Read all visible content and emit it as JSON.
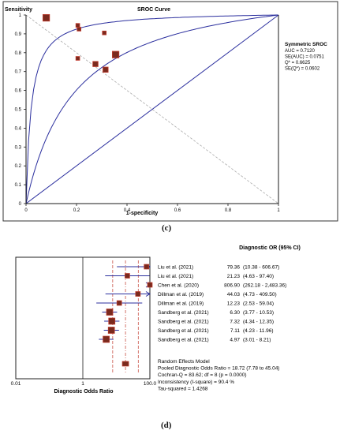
{
  "chart_data": [
    {
      "type": "scatter",
      "panel": "(c)",
      "title": "SROC Curve",
      "ylabel": "Sensitivity",
      "xlabel": "1-specificity",
      "xlim": [
        0,
        1
      ],
      "ylim": [
        0,
        1
      ],
      "x_ticks": [
        "0",
        "0.2",
        "0.4",
        "0.6",
        "0.8",
        "1"
      ],
      "y_ticks": [
        "0",
        "0.1",
        "0.2",
        "0.3",
        "0.4",
        "0.5",
        "0.6",
        "0.7",
        "0.8",
        "0.9",
        "1"
      ],
      "points": [
        {
          "x": 0.08,
          "y": 0.985,
          "w": 3
        },
        {
          "x": 0.205,
          "y": 0.945,
          "w": 1
        },
        {
          "x": 0.21,
          "y": 0.925,
          "w": 1
        },
        {
          "x": 0.31,
          "y": 0.905,
          "w": 1
        },
        {
          "x": 0.205,
          "y": 0.77,
          "w": 1
        },
        {
          "x": 0.275,
          "y": 0.74,
          "w": 2
        },
        {
          "x": 0.355,
          "y": 0.79,
          "w": 3
        },
        {
          "x": 0.315,
          "y": 0.71,
          "w": 2
        }
      ],
      "stats": {
        "heading": "Symmetric SROC",
        "lines": [
          "AUC = 0.7120",
          "SE(AUC) = 0.0751",
          "Q* = 0.6625",
          "SE(Q*) = 0.0602"
        ]
      }
    },
    {
      "type": "forest",
      "panel": "(d)",
      "header": "Diagnostic OR (95% CI)",
      "xlabel": "Diagnostic Odds Ratio",
      "x_ticks": [
        "0.01",
        "1",
        "100.0"
      ],
      "studies": [
        {
          "label": "Liu et al. (2021)",
          "or": 79.36,
          "lo": 10.38,
          "hi": 606.67,
          "text": "79.36",
          "ci": "(10.38 - 606.67)"
        },
        {
          "label": "Liu et al. (2021)",
          "or": 21.23,
          "lo": 4.63,
          "hi": 97.4,
          "text": "21.23",
          "ci": "(4.63 - 97.40)"
        },
        {
          "label": "Chen et al. (2020)",
          "or": 806.9,
          "lo": 262.18,
          "hi": 2483.36,
          "text": "806.90",
          "ci": "(262.18 - 2,483.36)"
        },
        {
          "label": "Dillman et al. (2019)",
          "or": 44.03,
          "lo": 4.73,
          "hi": 409.5,
          "text": "44.03",
          "ci": "(4.73 - 409.50)"
        },
        {
          "label": "Dillman et al. (2019)",
          "or": 12.23,
          "lo": 2.53,
          "hi": 59.04,
          "text": "12.23",
          "ci": "(2.53 - 59.04)"
        },
        {
          "label": "Sandberg et al. (2021)",
          "or": 6.3,
          "lo": 3.77,
          "hi": 10.53,
          "text": "6.30",
          "ci": "(3.77 - 10.53)"
        },
        {
          "label": "Sandberg et al. (2021)",
          "or": 7.32,
          "lo": 4.34,
          "hi": 12.35,
          "text": "7.32",
          "ci": "(4.34 - 12.35)"
        },
        {
          "label": "Sandberg et al. (2021)",
          "or": 7.11,
          "lo": 4.23,
          "hi": 11.96,
          "text": "7.11",
          "ci": "(4.23 - 11.96)"
        },
        {
          "label": "Sandberg et al. (2021)",
          "or": 4.97,
          "lo": 3.01,
          "hi": 8.21,
          "text": "4.97",
          "ci": "(3.01 - 8.21)"
        }
      ],
      "pooled": {
        "or": 18.72,
        "lo": 7.78,
        "hi": 45.04
      },
      "summary_lines": [
        "Random Effects Model",
        "Pooled Diagnostic Odds Ratio = 18.72 (7.78 to 45.04)",
        "Cochran-Q = 83.62; df = 8 (p = 0.0000)",
        "Inconsistency (I-square) = 90.4 %",
        "Tau-squared = 1.4268"
      ]
    }
  ],
  "colors": {
    "marker_fill": "#7a2a1e",
    "marker_stroke": "#c0392b",
    "curve": "#2b2f9e",
    "axis": "#1a1a1a",
    "grid": "#aaaaaa",
    "ci_line": "#2b2f9e",
    "pooled_line": "#c0392b"
  }
}
